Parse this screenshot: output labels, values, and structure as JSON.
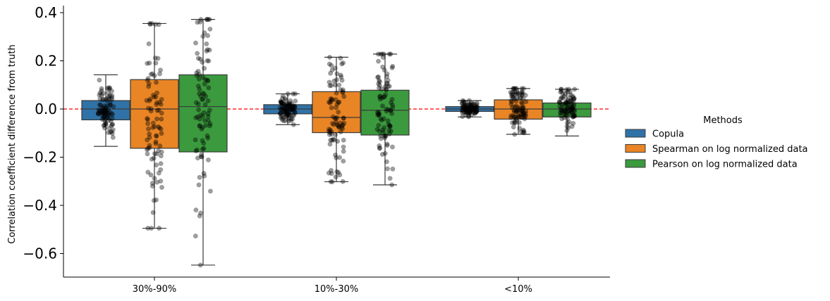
{
  "chart_data": {
    "type": "box",
    "ylabel": "Correlation coefficient difference from truth",
    "xlabel": "",
    "ylim": [
      -0.7,
      0.42
    ],
    "yticks": [
      0.4,
      0.2,
      0.0,
      -0.2,
      -0.4,
      -0.6
    ],
    "ytick_labels": [
      "0.4",
      "0.2",
      "0.0",
      "−0.2",
      "−0.4",
      "−0.6"
    ],
    "categories": [
      "30%-90%",
      "10%-30%",
      "<10%"
    ],
    "reference_line": {
      "y": 0.0,
      "color": "#ff0000",
      "style": "dashed"
    },
    "legend": {
      "title": "Methods",
      "position": "right"
    },
    "series": [
      {
        "name": "Copula",
        "color": "#2f72a7",
        "stats": [
          {
            "q1": -0.045,
            "median": 0.0,
            "q3": 0.035,
            "whisker_low": -0.155,
            "whisker_high": 0.142
          },
          {
            "q1": -0.02,
            "median": 0.0,
            "q3": 0.018,
            "whisker_low": -0.065,
            "whisker_high": 0.063
          },
          {
            "q1": -0.01,
            "median": 0.0,
            "q3": 0.01,
            "whisker_low": -0.033,
            "whisker_high": 0.035
          }
        ]
      },
      {
        "name": "Spearman on log normalized data",
        "color": "#e98525",
        "stats": [
          {
            "q1": -0.163,
            "median": 0.0,
            "q3": 0.122,
            "whisker_low": -0.495,
            "whisker_high": 0.355
          },
          {
            "q1": -0.098,
            "median": -0.035,
            "q3": 0.072,
            "whisker_low": -0.302,
            "whisker_high": 0.215
          },
          {
            "q1": -0.042,
            "median": 0.0,
            "q3": 0.038,
            "whisker_low": -0.105,
            "whisker_high": 0.085
          }
        ]
      },
      {
        "name": "Pearson on log normalized data",
        "color": "#3b9a3e",
        "stats": [
          {
            "q1": -0.178,
            "median": 0.01,
            "q3": 0.142,
            "whisker_low": -0.648,
            "whisker_high": 0.372
          },
          {
            "q1": -0.108,
            "median": -0.005,
            "q3": 0.078,
            "whisker_low": -0.315,
            "whisker_high": 0.228
          },
          {
            "q1": -0.033,
            "median": 0.0,
            "q3": 0.025,
            "whisker_low": -0.112,
            "whisker_high": 0.082
          }
        ]
      }
    ]
  }
}
